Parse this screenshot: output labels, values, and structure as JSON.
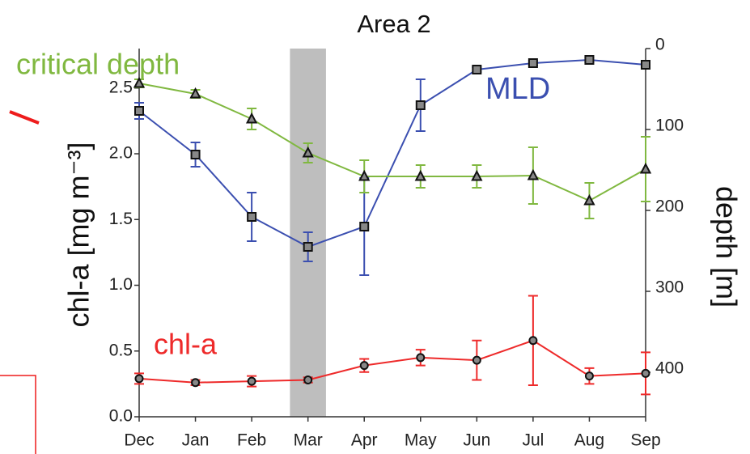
{
  "chart_data": {
    "type": "line",
    "title": "Area 2",
    "categories": [
      "Dec",
      "Jan",
      "Feb",
      "Mar",
      "Apr",
      "May",
      "Jun",
      "Jul",
      "Aug",
      "Sep"
    ],
    "ylabel": "chl-a [mg m⁻³]",
    "y2label": "depth [m]",
    "ylim": [
      0,
      2.8
    ],
    "yticks": [
      {
        "value": 0,
        "label": "0.0"
      },
      0.5,
      {
        "value": 1,
        "label": "1.0"
      },
      1.5,
      {
        "value": 2,
        "label": "2.0"
      },
      2.5
    ],
    "y2lim": [
      0,
      455
    ],
    "y2ticks": [
      0,
      100,
      200,
      300,
      400
    ],
    "highlight_category": "Mar",
    "series": [
      {
        "name": "chl-a",
        "color": "#ee2a2a",
        "marker": "circle",
        "values": [
          0.29,
          0.26,
          0.27,
          0.28,
          0.39,
          0.45,
          0.43,
          0.58,
          0.31,
          0.33
        ],
        "errors": [
          0.04,
          0.02,
          0.04,
          0.02,
          0.05,
          0.06,
          0.15,
          0.34,
          0.06,
          0.16
        ]
      },
      {
        "name": "MLD",
        "color": "#3b4fb0",
        "marker": "square",
        "axis": "y2",
        "values": [
          77,
          131,
          208,
          245,
          220,
          70,
          26,
          18,
          14,
          20
        ],
        "errors": [
          10,
          15,
          30,
          18,
          60,
          32,
          3,
          3,
          3,
          4
        ]
      },
      {
        "name": "critical depth",
        "color": "#80b840",
        "marker": "triangle",
        "axis": "y2",
        "values": [
          43,
          56,
          87,
          129,
          158,
          158,
          158,
          157,
          188,
          149
        ],
        "errors": [
          5,
          5,
          13,
          12,
          20,
          14,
          14,
          35,
          22,
          40
        ]
      }
    ]
  }
}
